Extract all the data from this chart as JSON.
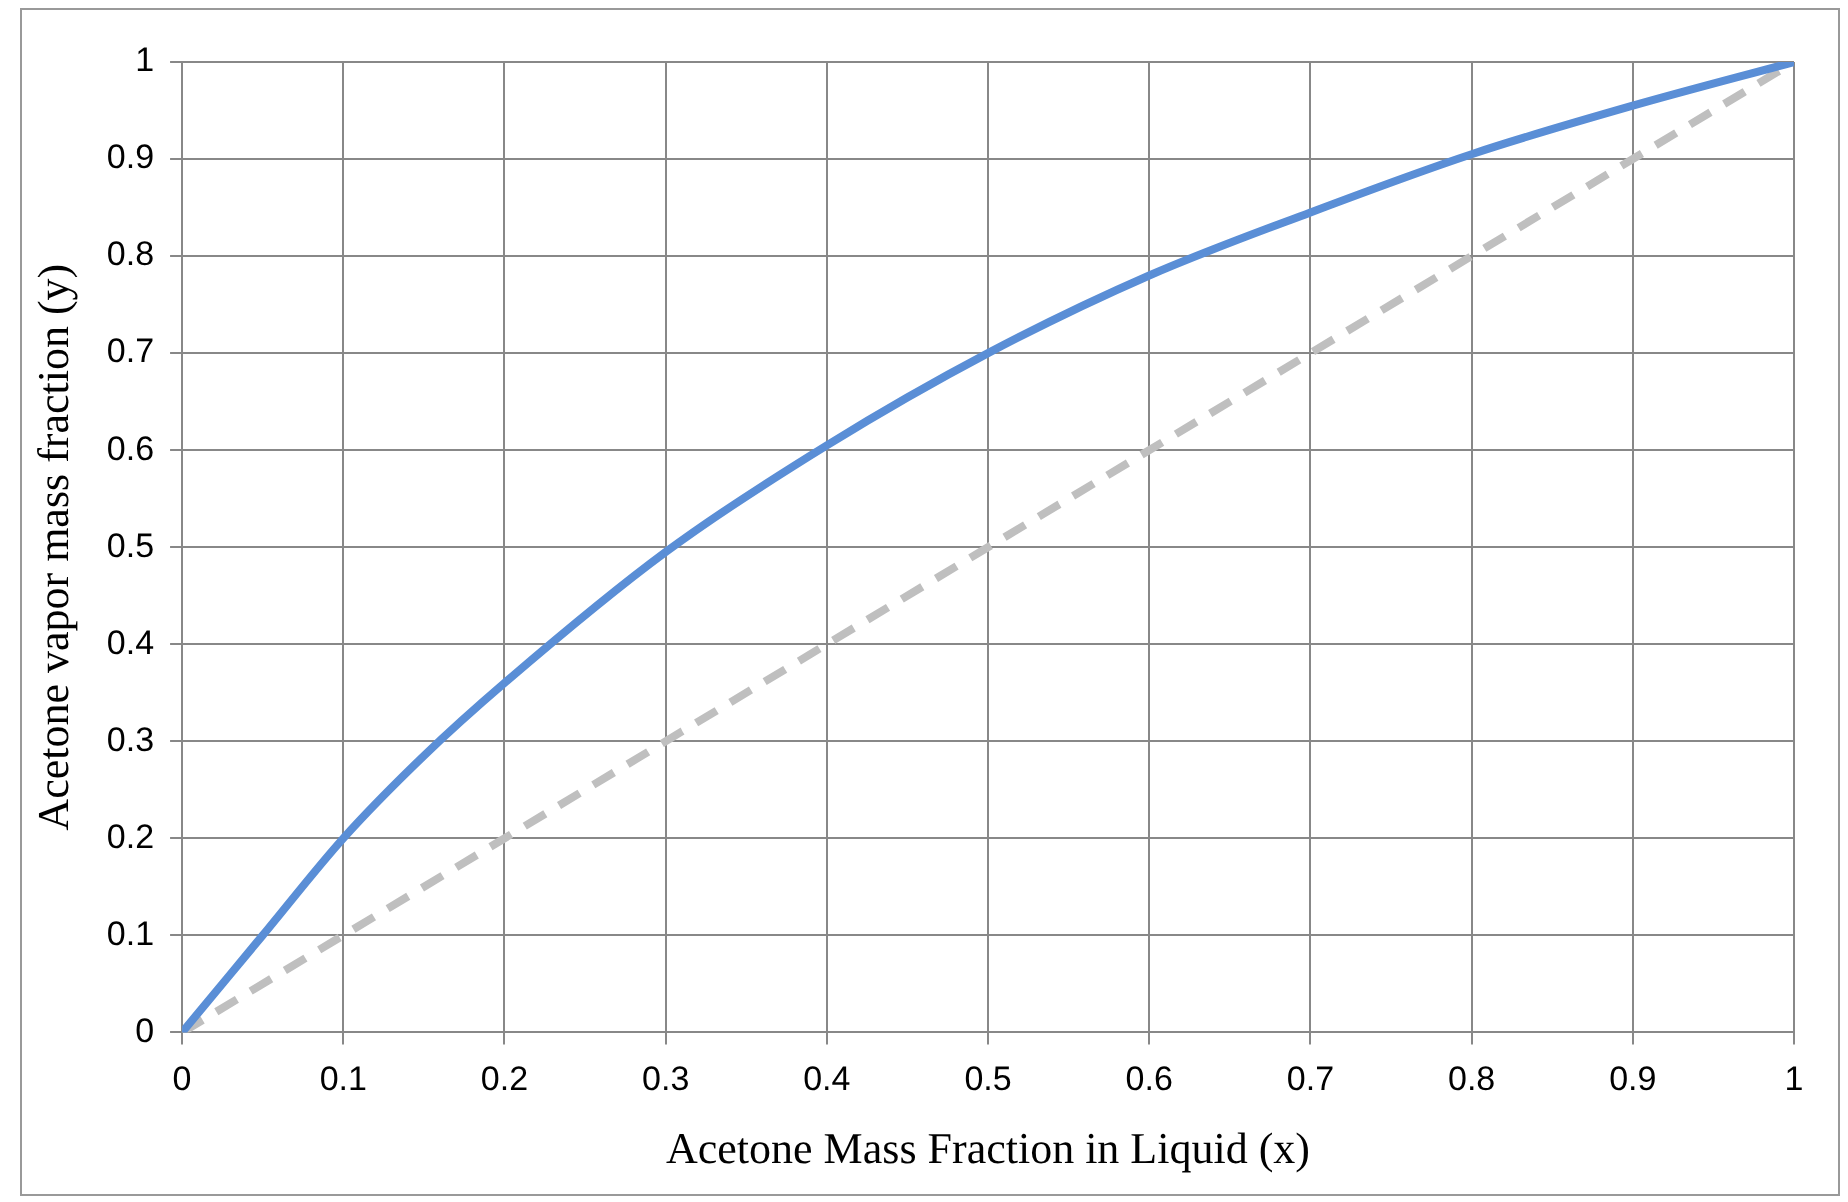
{
  "chart_data": {
    "type": "line",
    "xlabel": "Acetone Mass Fraction in Liquid (x)",
    "ylabel": "Acetone vapor mass fraction (y)",
    "xlim": [
      0,
      1
    ],
    "ylim": [
      0,
      1
    ],
    "xticks": [
      0,
      0.1,
      0.2,
      0.3,
      0.4,
      0.5,
      0.6,
      0.7,
      0.8,
      0.9,
      1
    ],
    "yticks": [
      0,
      0.1,
      0.2,
      0.3,
      0.4,
      0.5,
      0.6,
      0.7,
      0.8,
      0.9,
      1
    ],
    "grid": true,
    "legend": false,
    "marker": "none",
    "series": [
      {
        "color": "#5a8ed6",
        "line_style": "solid",
        "x": [
          0,
          0.05,
          0.1,
          0.15,
          0.2,
          0.3,
          0.4,
          0.5,
          0.6,
          0.7,
          0.8,
          0.9,
          1
        ],
        "values": [
          0,
          0.1,
          0.2,
          0.285,
          0.36,
          0.495,
          0.605,
          0.7,
          0.78,
          0.845,
          0.905,
          0.955,
          1
        ]
      },
      {
        "color": "#bfbfbf",
        "line_style": "dashed",
        "x": [
          0,
          1
        ],
        "values": [
          0,
          1
        ]
      }
    ]
  }
}
